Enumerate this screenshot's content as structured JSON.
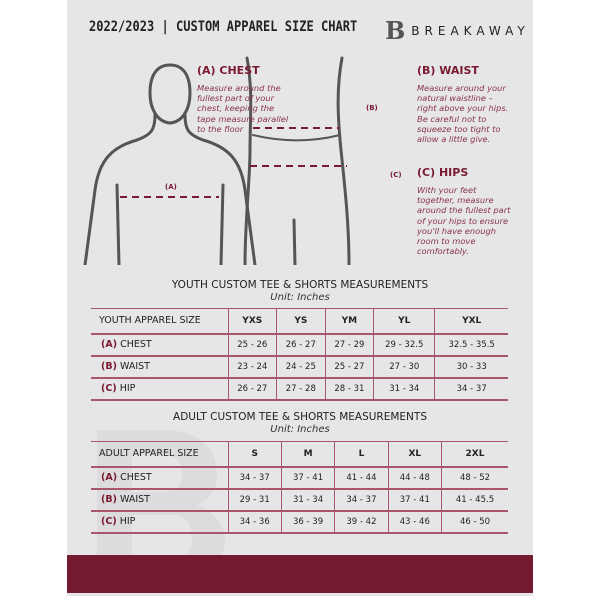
{
  "header": {
    "title": "2022/2023  |  CUSTOM APPAREL SIZE CHART",
    "brand_logo": "B",
    "brand_name": "BREAKAWAY"
  },
  "measures": {
    "chest": {
      "heading": "(A) CHEST",
      "marker": "(A)",
      "text": "Measure around the fullest part of your chest, keeping the tape measure parallel to the floor"
    },
    "waist": {
      "heading": "(B) WAIST",
      "marker": "(B)",
      "text": "Measure around your natural waistline – right above your hips. Be careful not to squeeze too tight to allow a little give."
    },
    "hips": {
      "heading": "(C) HIPS",
      "marker": "(C)",
      "text": "With your feet together, measure around the fullest part of your hips to ensure you'll have enough room to move comfortably."
    }
  },
  "youth": {
    "title": "YOUTH CUSTOM TEE & SHORTS MEASUREMENTS",
    "unit": "Unit: Inches",
    "header": "YOUTH APPAREL SIZE",
    "sizes": [
      "YXS",
      "YS",
      "YM",
      "YL",
      "YXL"
    ],
    "rows": [
      {
        "letter": "(A)",
        "label": "CHEST",
        "values": [
          "25 - 26",
          "26 - 27",
          "27 - 29",
          "29 - 32.5",
          "32.5 - 35.5"
        ]
      },
      {
        "letter": "(B)",
        "label": "WAIST",
        "values": [
          "23 - 24",
          "24 - 25",
          "25 - 27",
          "27 - 30",
          "30 - 33"
        ]
      },
      {
        "letter": "(C)",
        "label": "HIP",
        "values": [
          "26 - 27",
          "27 - 28",
          "28 - 31",
          "31 - 34",
          "34 - 37"
        ]
      }
    ]
  },
  "adult": {
    "title": "ADULT CUSTOM TEE & SHORTS MEASUREMENTS",
    "unit": "Unit: Inches",
    "header": "ADULT APPAREL SIZE",
    "sizes": [
      "S",
      "M",
      "L",
      "XL",
      "2XL"
    ],
    "rows": [
      {
        "letter": "(A)",
        "label": "CHEST",
        "values": [
          "34 - 37",
          "37 - 41",
          "41 - 44",
          "44 - 48",
          "48 - 52"
        ]
      },
      {
        "letter": "(B)",
        "label": "WAIST",
        "values": [
          "29 - 31",
          "31 - 34",
          "34 - 37",
          "37 - 41",
          "41 - 45.5"
        ]
      },
      {
        "letter": "(C)",
        "label": "HIP",
        "values": [
          "34 - 36",
          "36 - 39",
          "39 - 42",
          "43 - 46",
          "46 - 50"
        ]
      }
    ]
  },
  "colors": {
    "accent": "#741b30",
    "background": "#e6e6e8"
  }
}
